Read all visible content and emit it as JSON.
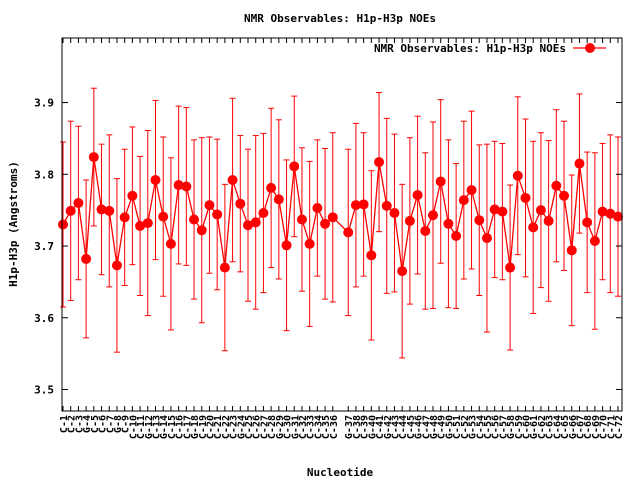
{
  "chart_data": {
    "type": "line",
    "title": "NMR Observables: H1p-H3p NOEs",
    "xlabel": "Nucleotide",
    "ylabel": "H1p-H3p (Angstroms)",
    "ylim": [
      3.47,
      3.99
    ],
    "yticks": [
      3.5,
      3.6,
      3.7,
      3.8,
      3.9
    ],
    "grid": false,
    "legend_position": "top-right",
    "series_color": "#ff0000",
    "categories": [
      "C-1",
      "C-2",
      "C-3",
      "G-4",
      "C-5",
      "C-6",
      "C-7",
      "G-8",
      "C-9",
      "C-10",
      "C-11",
      "G-12",
      "C-13",
      "G-14",
      "C-15",
      "C-16",
      "C-17",
      "G-18",
      "C-19",
      "C-20",
      "C-21",
      "C-22",
      "C-23",
      "G-24",
      "C-25",
      "C-26",
      "C-27",
      "C-28",
      "G-29",
      "C-30",
      "G-31",
      "C-32",
      "C-33",
      "C-34",
      "C-35",
      "C-36",
      "G-37",
      "C-38",
      "C-39",
      "G-40",
      "C-41",
      "G-42",
      "C-43",
      "C-44",
      "C-45",
      "G-46",
      "C-47",
      "G-48",
      "C-49",
      "G-50",
      "C-51",
      "C-52",
      "G-53",
      "C-54",
      "C-55",
      "C-56",
      "C-57",
      "G-58",
      "C-59",
      "C-60",
      "G-61",
      "C-62",
      "C-63",
      "C-64",
      "C-65",
      "G-66",
      "C-67",
      "C-68",
      "C-69",
      "C-70",
      "C-71",
      "C-72"
    ],
    "gap_after_index": 35,
    "series": [
      {
        "name": "NMR Observables: H1p-H3p NOEs",
        "values": [
          3.73,
          3.749,
          3.76,
          3.682,
          3.824,
          3.751,
          3.749,
          3.673,
          3.74,
          3.77,
          3.728,
          3.732,
          3.792,
          3.741,
          3.703,
          3.785,
          3.783,
          3.737,
          3.722,
          3.757,
          3.744,
          3.67,
          3.792,
          3.759,
          3.729,
          3.733,
          3.746,
          3.781,
          3.765,
          3.701,
          3.811,
          3.737,
          3.703,
          3.753,
          3.731,
          3.74,
          3.719,
          3.757,
          3.758,
          3.687,
          3.817,
          3.756,
          3.746,
          3.665,
          3.735,
          3.771,
          3.721,
          3.743,
          3.79,
          3.731,
          3.714,
          3.764,
          3.778,
          3.736,
          3.711,
          3.751,
          3.748,
          3.67,
          3.798,
          3.767,
          3.726,
          3.75,
          3.735,
          3.784,
          3.77,
          3.694,
          3.815,
          3.733,
          3.707,
          3.748,
          3.745,
          3.741
        ],
        "errors": [
          0.115,
          0.125,
          0.107,
          0.11,
          0.096,
          0.091,
          0.106,
          0.121,
          0.095,
          0.096,
          0.097,
          0.129,
          0.111,
          0.111,
          0.12,
          0.11,
          0.11,
          0.111,
          0.129,
          0.095,
          0.105,
          0.116,
          0.114,
          0.095,
          0.106,
          0.121,
          0.111,
          0.111,
          0.111,
          0.119,
          0.098,
          0.1,
          0.115,
          0.095,
          0.105,
          0.118,
          0.116,
          0.114,
          0.1,
          0.118,
          0.097,
          0.122,
          0.11,
          0.121,
          0.116,
          0.11,
          0.109,
          0.13,
          0.114,
          0.117,
          0.101,
          0.11,
          0.11,
          0.105,
          0.131,
          0.095,
          0.095,
          0.115,
          0.11,
          0.11,
          0.12,
          0.108,
          0.112,
          0.106,
          0.104,
          0.105,
          0.097,
          0.098,
          0.123,
          0.095,
          0.11,
          0.111
        ]
      }
    ]
  }
}
